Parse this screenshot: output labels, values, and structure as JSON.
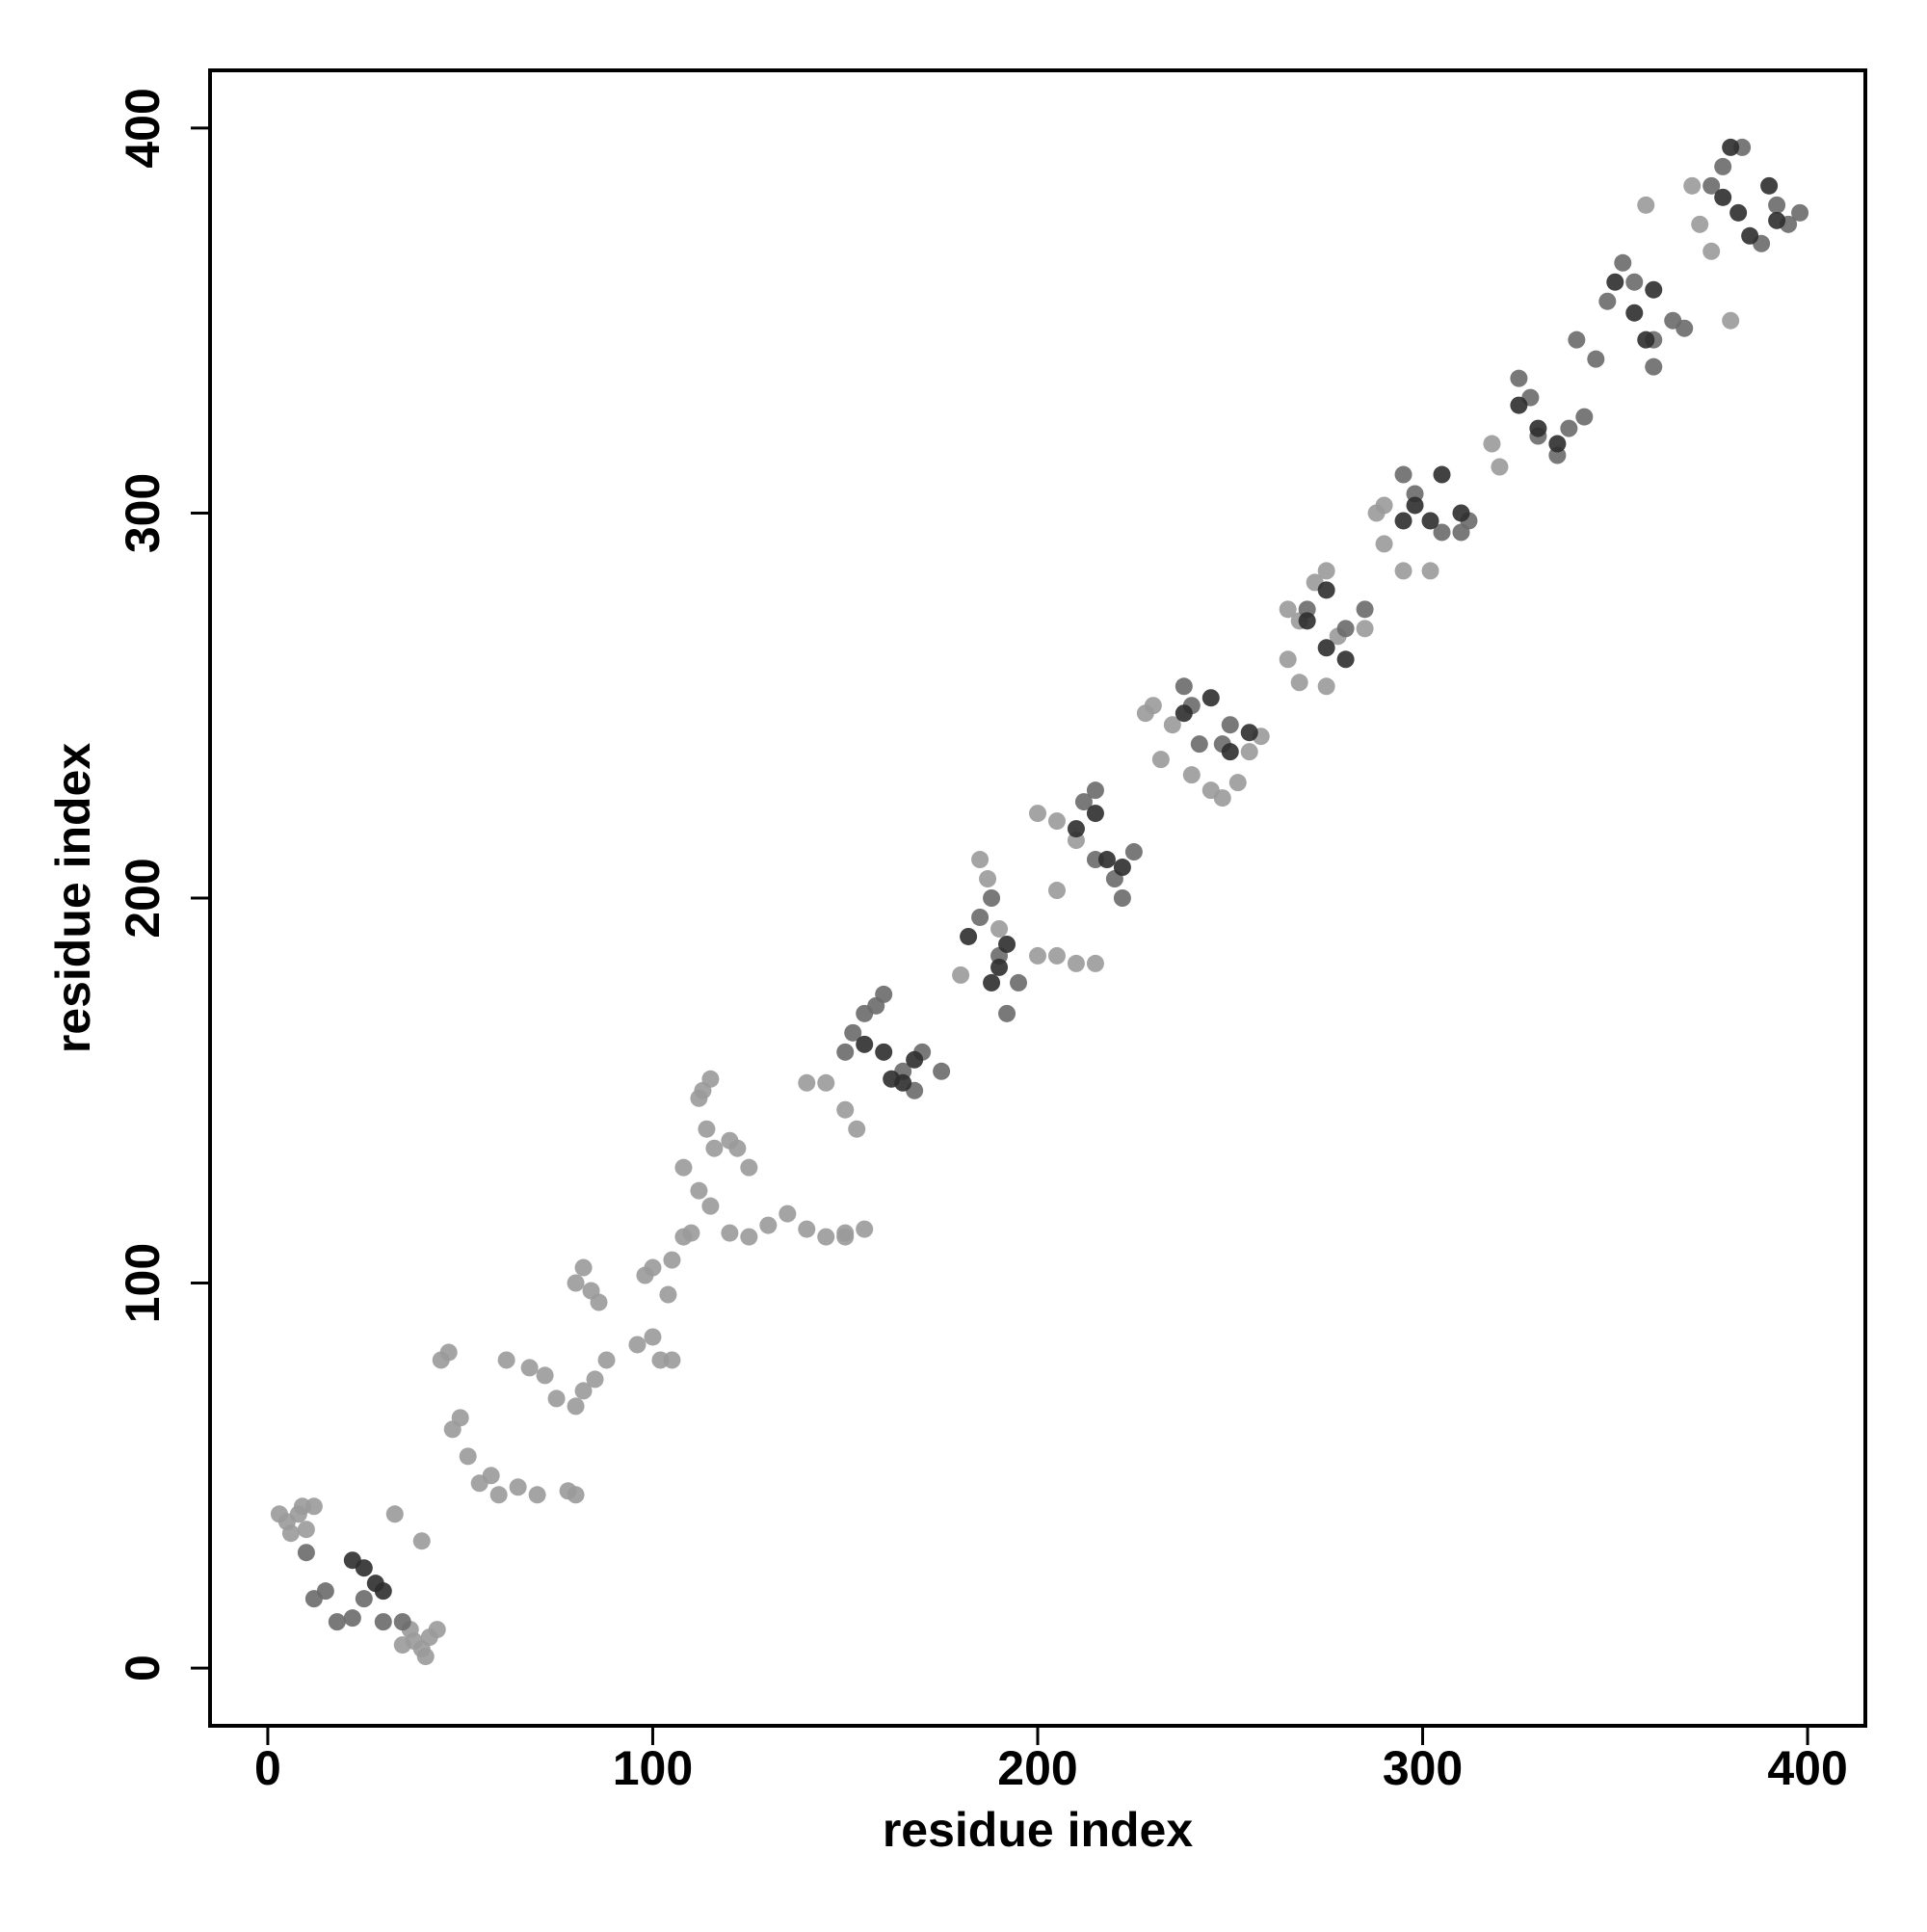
{
  "chart_data": {
    "type": "scatter",
    "x_label": "residue index",
    "y_label": "residue index",
    "xlim": [
      -15,
      415
    ],
    "ylim": [
      -15,
      415
    ],
    "xticks": [
      0,
      100,
      200,
      300,
      400
    ],
    "yticks": [
      0,
      100,
      200,
      300,
      400
    ],
    "series": [
      {
        "color": "#9a9a9a",
        "x": [
          5,
          8,
          10,
          12,
          6,
          3,
          9,
          40,
          42,
          38,
          35,
          44,
          41,
          37,
          33,
          40,
          45,
          47,
          48,
          50,
          52,
          55,
          58,
          60,
          65,
          70,
          62,
          68,
          72,
          75,
          80,
          82,
          85,
          88,
          80,
          82,
          84,
          86,
          80,
          78,
          96,
          100,
          102,
          105,
          98,
          100,
          104,
          108,
          110,
          105,
          108,
          112,
          115,
          113,
          115,
          112,
          114,
          116,
          120,
          125,
          130,
          135,
          140,
          145,
          150,
          155,
          150,
          120,
          122,
          125,
          140,
          145,
          150,
          153,
          180,
          185,
          187,
          190,
          200,
          205,
          210,
          215,
          200,
          205,
          210,
          205,
          228,
          230,
          232,
          235,
          240,
          245,
          248,
          252,
          255,
          258,
          265,
          268,
          272,
          275,
          265,
          268,
          275,
          278,
          285,
          288,
          290,
          290,
          295,
          302,
          318,
          320,
          358,
          372,
          375,
          380,
          370
        ],
        "y": [
          38,
          40,
          36,
          42,
          35,
          40,
          42,
          5,
          8,
          7,
          6,
          10,
          3,
          10,
          40,
          33,
          80,
          82,
          62,
          65,
          55,
          48,
          50,
          45,
          47,
          45,
          80,
          78,
          76,
          70,
          68,
          72,
          75,
          80,
          100,
          104,
          98,
          95,
          45,
          46,
          84,
          86,
          80,
          80,
          102,
          104,
          97,
          112,
          113,
          106,
          130,
          124,
          120,
          150,
          153,
          148,
          140,
          135,
          113,
          112,
          115,
          118,
          114,
          112,
          113,
          114,
          112,
          137,
          135,
          130,
          152,
          152,
          145,
          140,
          180,
          210,
          205,
          192,
          185,
          185,
          183,
          183,
          222,
          220,
          215,
          202,
          248,
          250,
          236,
          245,
          232,
          228,
          226,
          230,
          238,
          242,
          275,
          272,
          282,
          285,
          262,
          256,
          255,
          268,
          270,
          300,
          302,
          292,
          285,
          285,
          318,
          312,
          380,
          375,
          368,
          350,
          385
        ]
      },
      {
        "color": "#6a6a6a",
        "x": [
          10,
          15,
          12,
          18,
          22,
          25,
          30,
          35,
          150,
          152,
          155,
          158,
          160,
          165,
          170,
          175,
          168,
          185,
          188,
          190,
          195,
          192,
          215,
          220,
          222,
          225,
          212,
          215,
          238,
          240,
          242,
          248,
          250,
          270,
          280,
          285,
          295,
          298,
          305,
          310,
          312,
          325,
          328,
          330,
          335,
          338,
          342,
          340,
          345,
          348,
          352,
          355,
          360,
          365,
          368,
          360,
          375,
          378,
          383,
          388,
          392,
          395,
          398
        ],
        "y": [
          30,
          20,
          18,
          12,
          13,
          18,
          12,
          12,
          160,
          165,
          170,
          172,
          175,
          155,
          160,
          155,
          150,
          195,
          200,
          185,
          178,
          170,
          210,
          205,
          200,
          212,
          225,
          228,
          255,
          250,
          240,
          240,
          245,
          275,
          270,
          275,
          310,
          305,
          295,
          295,
          298,
          335,
          330,
          320,
          315,
          322,
          325,
          345,
          340,
          355,
          365,
          360,
          345,
          350,
          348,
          338,
          385,
          390,
          395,
          370,
          380,
          375,
          378
        ]
      },
      {
        "color": "#2e2e2e",
        "x": [
          22,
          28,
          25,
          30,
          155,
          160,
          162,
          168,
          165,
          182,
          190,
          192,
          188,
          210,
          215,
          218,
          222,
          238,
          245,
          250,
          255,
          270,
          275,
          280,
          275,
          298,
          302,
          305,
          310,
          295,
          325,
          330,
          335,
          350,
          355,
          360,
          358,
          378,
          382,
          385,
          390,
          392,
          380
        ],
        "y": [
          28,
          22,
          26,
          20,
          162,
          160,
          153,
          158,
          152,
          190,
          182,
          188,
          178,
          218,
          222,
          210,
          208,
          248,
          252,
          238,
          243,
          272,
          265,
          262,
          280,
          302,
          298,
          310,
          300,
          298,
          328,
          322,
          318,
          360,
          352,
          358,
          345,
          382,
          378,
          372,
          385,
          376,
          395
        ]
      }
    ]
  }
}
